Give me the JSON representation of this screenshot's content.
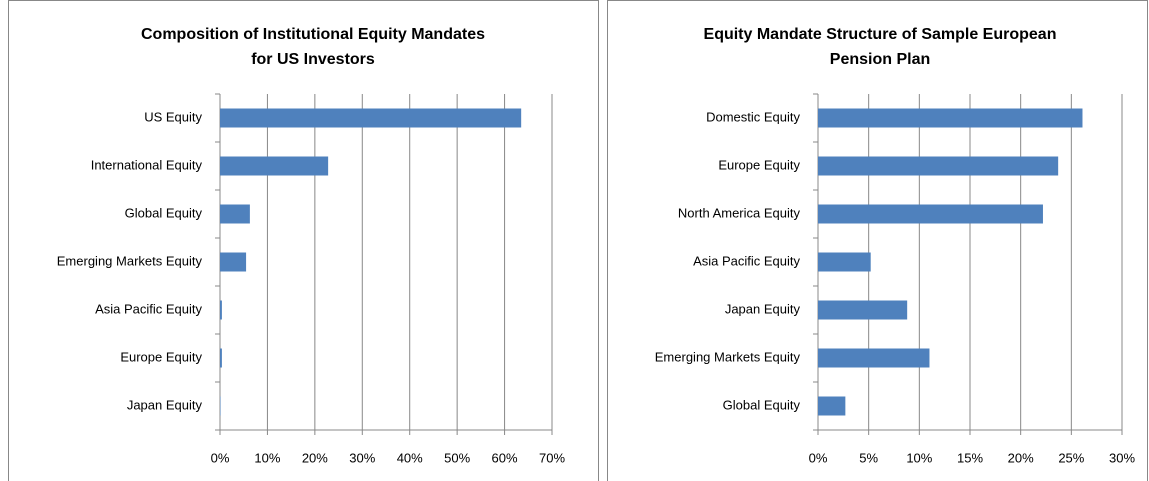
{
  "chart_data": [
    {
      "type": "bar",
      "orientation": "horizontal",
      "title": [
        "Composition of Institutional Equity Mandates",
        "for US Investors"
      ],
      "categories": [
        "US Equity",
        "International Equity",
        "Global Equity",
        "Emerging Markets Equity",
        "Asia Pacific Equity",
        "Europe Equity",
        "Japan Equity"
      ],
      "values": [
        63.5,
        22.8,
        6.3,
        5.5,
        0.4,
        0.4,
        0.1
      ],
      "color": "#4f81bd",
      "xlim": [
        0,
        70
      ],
      "xticks": [
        {
          "value": 0,
          "label": "0%"
        },
        {
          "value": 10,
          "label": "10%"
        },
        {
          "value": 20,
          "label": "20%"
        },
        {
          "value": 30,
          "label": "30%"
        },
        {
          "value": 40,
          "label": "40%"
        },
        {
          "value": 50,
          "label": "50%"
        },
        {
          "value": 60,
          "label": "60%"
        },
        {
          "value": 70,
          "label": "70%"
        }
      ],
      "grid": true
    },
    {
      "type": "bar",
      "orientation": "horizontal",
      "title": [
        "Equity Mandate Structure of Sample European",
        "Pension Plan"
      ],
      "categories": [
        "Domestic Equity",
        "Europe Equity",
        "North America Equity",
        "Asia Pacific Equity",
        "Japan Equity",
        "Emerging Markets Equity",
        "Global Equity"
      ],
      "values": [
        26.1,
        23.7,
        22.2,
        5.2,
        8.8,
        11.0,
        2.7
      ],
      "color": "#4f81bd",
      "xlim": [
        0,
        30
      ],
      "xticks": [
        {
          "value": 0,
          "label": "0%"
        },
        {
          "value": 5,
          "label": "5%"
        },
        {
          "value": 10,
          "label": "10%"
        },
        {
          "value": 15,
          "label": "15%"
        },
        {
          "value": 20,
          "label": "20%"
        },
        {
          "value": 25,
          "label": "25%"
        },
        {
          "value": 30,
          "label": "30%"
        }
      ],
      "grid": true
    }
  ]
}
